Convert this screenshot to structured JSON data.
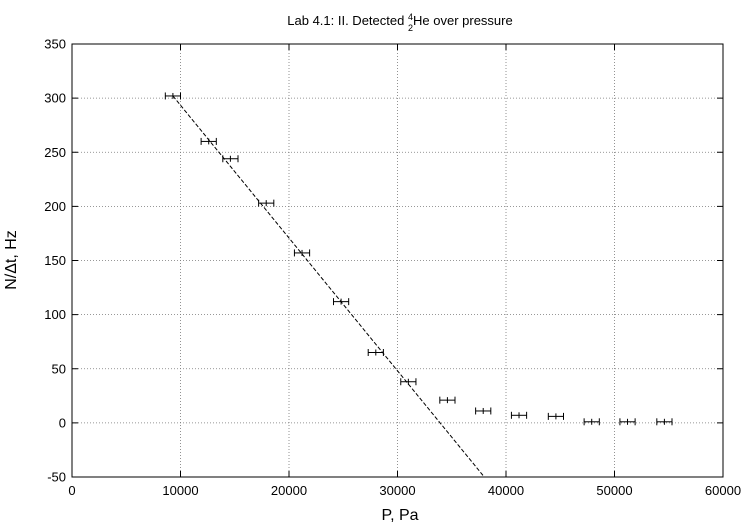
{
  "chart_data": {
    "type": "scatter",
    "title": {
      "prefix": "Lab 4.1: II. Detected ",
      "isotope_mass": "4",
      "isotope_number": "2",
      "element": "He",
      "suffix": " over pressure"
    },
    "xlabel": "P, Pa",
    "ylabel": "N/Δt, Hz",
    "xlim": [
      0,
      60000
    ],
    "ylim": [
      -50,
      350
    ],
    "xticks": [
      0,
      10000,
      20000,
      30000,
      40000,
      50000,
      60000
    ],
    "yticks": [
      -50,
      0,
      50,
      100,
      150,
      200,
      250,
      300,
      350
    ],
    "grid": true,
    "series": [
      {
        "style": "points-with-horizontal-error-bars",
        "color": "#000000",
        "points": [
          {
            "x": 9300,
            "y": 302,
            "xerr": 700
          },
          {
            "x": 12600,
            "y": 260,
            "xerr": 700
          },
          {
            "x": 14600,
            "y": 244,
            "xerr": 700
          },
          {
            "x": 17900,
            "y": 203,
            "xerr": 700
          },
          {
            "x": 21200,
            "y": 157,
            "xerr": 700
          },
          {
            "x": 24800,
            "y": 112,
            "xerr": 700
          },
          {
            "x": 28000,
            "y": 65,
            "xerr": 700
          },
          {
            "x": 31000,
            "y": 38,
            "xerr": 700
          },
          {
            "x": 34600,
            "y": 21,
            "xerr": 700
          },
          {
            "x": 37900,
            "y": 11,
            "xerr": 700
          },
          {
            "x": 41200,
            "y": 7,
            "xerr": 700
          },
          {
            "x": 44600,
            "y": 6,
            "xerr": 700
          },
          {
            "x": 47900,
            "y": 1,
            "xerr": 700
          },
          {
            "x": 51200,
            "y": 1,
            "xerr": 700
          },
          {
            "x": 54600,
            "y": 1,
            "xerr": 700
          }
        ]
      },
      {
        "style": "dashed-fit-line",
        "color": "#000000",
        "x": [
          9300,
          38000
        ],
        "y": [
          302,
          -50
        ]
      }
    ]
  }
}
